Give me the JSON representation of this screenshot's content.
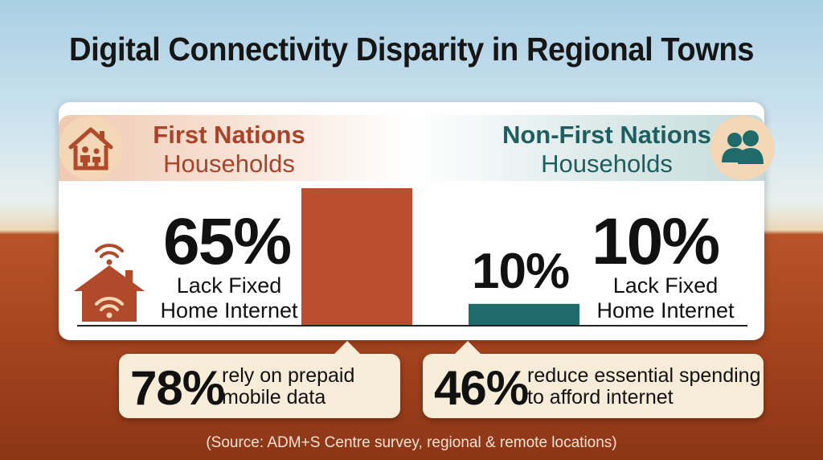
{
  "title": "Digital Connectivity Disparity in Regional Towns",
  "groups": {
    "first_nations": {
      "line1": "First Nations",
      "line2": "Households",
      "percent_label": "65%",
      "desc_line1": "Lack Fixed",
      "desc_line2": "Home Internet",
      "color": "#bb4e2f",
      "icon": "house-family-icon"
    },
    "non_first_nations": {
      "line1": "Non-First Nations",
      "line2": "Households",
      "percent_label": "10%",
      "desc_line1": "Lack Fixed",
      "desc_line2": "Home Internet",
      "color": "#1f6b6c",
      "icon": "people-icon"
    }
  },
  "chart_data": {
    "type": "bar",
    "categories": [
      "First Nations Households",
      "Non-First Nations Households"
    ],
    "values": [
      65,
      10
    ],
    "value_labels": [
      "65%",
      "10%"
    ],
    "ylim": [
      0,
      65
    ],
    "colors": [
      "#bb4e2f",
      "#1f6b6c"
    ],
    "grid": false
  },
  "callouts": [
    {
      "percent": "78%",
      "line1": "rely on prepaid",
      "line2": "mobile data"
    },
    {
      "percent": "46%",
      "line1": "reduce essential spending",
      "line2": "to afford internet"
    }
  ],
  "source": "(Source: ADM+S Centre survey, regional & remote locations)"
}
